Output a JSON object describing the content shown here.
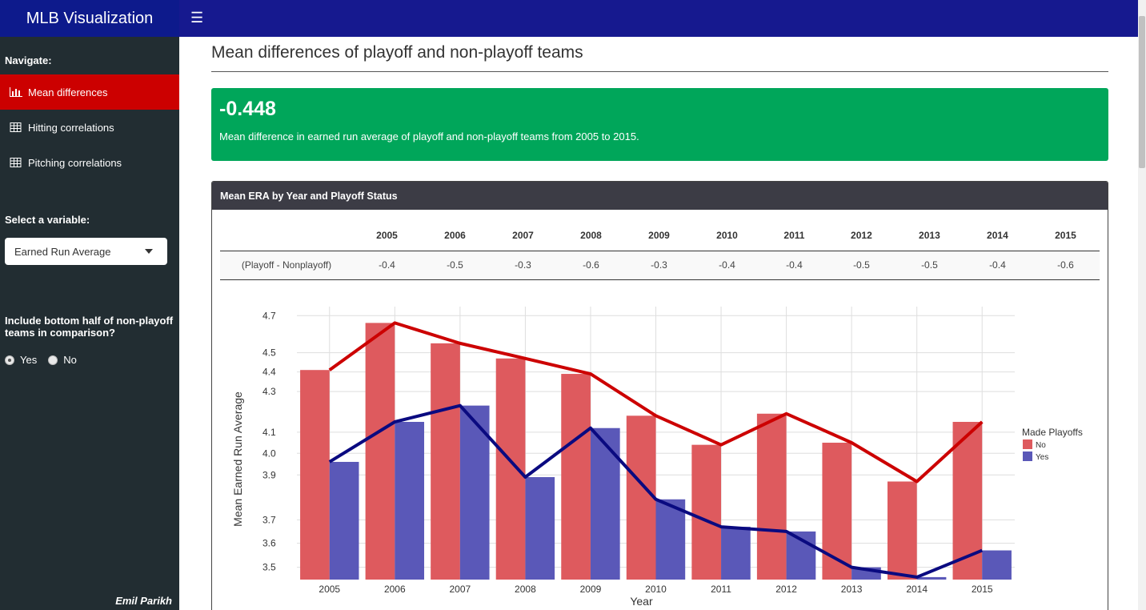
{
  "header": {
    "app_title": "MLB Visualization",
    "menu_icon": "hamburger-icon"
  },
  "sidebar": {
    "navigate_label": "Navigate:",
    "items": [
      {
        "label": "Mean differences",
        "icon": "bar-chart-icon",
        "active": true
      },
      {
        "label": "Hitting correlations",
        "icon": "table-icon",
        "active": false
      },
      {
        "label": "Pitching correlations",
        "icon": "table-icon",
        "active": false
      }
    ],
    "select_label": "Select a variable:",
    "select_value": "Earned Run Average",
    "include_label": "Include bottom half of non-playoff teams in comparison?",
    "radio": {
      "yes": "Yes",
      "no": "No",
      "selected": "Yes"
    },
    "author": "Emil Parikh"
  },
  "main": {
    "title": "Mean differences of playoff and non-playoff teams",
    "valuebox": {
      "value": "-0.448",
      "description": "Mean difference in earned run average of playoff and non-playoff teams from 2005 to 2015.",
      "color": "#00a65a"
    },
    "box_title": "Mean ERA by Year and Playoff Status",
    "table": {
      "row_label": "(Playoff - Nonplayoff)",
      "years": [
        "2005",
        "2006",
        "2007",
        "2008",
        "2009",
        "2010",
        "2011",
        "2012",
        "2013",
        "2014",
        "2015"
      ],
      "diffs": [
        "-0.4",
        "-0.5",
        "-0.3",
        "-0.6",
        "-0.3",
        "-0.4",
        "-0.4",
        "-0.5",
        "-0.5",
        "-0.4",
        "-0.6"
      ]
    }
  },
  "chart_data": {
    "type": "bar",
    "title": "",
    "xlabel": "Year",
    "ylabel": "Mean Earned Run Average",
    "y_scale": "log",
    "ylim": [
      3.45,
      4.75
    ],
    "y_ticks": [
      "3.5",
      "3.6",
      "3.7",
      "3.9",
      "4.0",
      "4.1",
      "4.3",
      "4.4",
      "4.5",
      "4.7"
    ],
    "categories": [
      "2005",
      "2006",
      "2007",
      "2008",
      "2009",
      "2010",
      "2011",
      "2012",
      "2013",
      "2014",
      "2015"
    ],
    "legend_title": "Made Playoffs",
    "legend_position": "right",
    "grid": true,
    "series": [
      {
        "name": "No",
        "color": "#de5a5e",
        "line_color": "#cc0000",
        "values": [
          4.41,
          4.66,
          4.55,
          4.47,
          4.39,
          4.18,
          4.04,
          4.19,
          4.05,
          3.87,
          4.15
        ]
      },
      {
        "name": "Yes",
        "color": "#5a58b8",
        "line_color": "#0a0a80",
        "values": [
          3.96,
          4.15,
          4.23,
          3.89,
          4.12,
          3.79,
          3.67,
          3.65,
          3.5,
          3.46,
          3.57
        ]
      }
    ]
  }
}
